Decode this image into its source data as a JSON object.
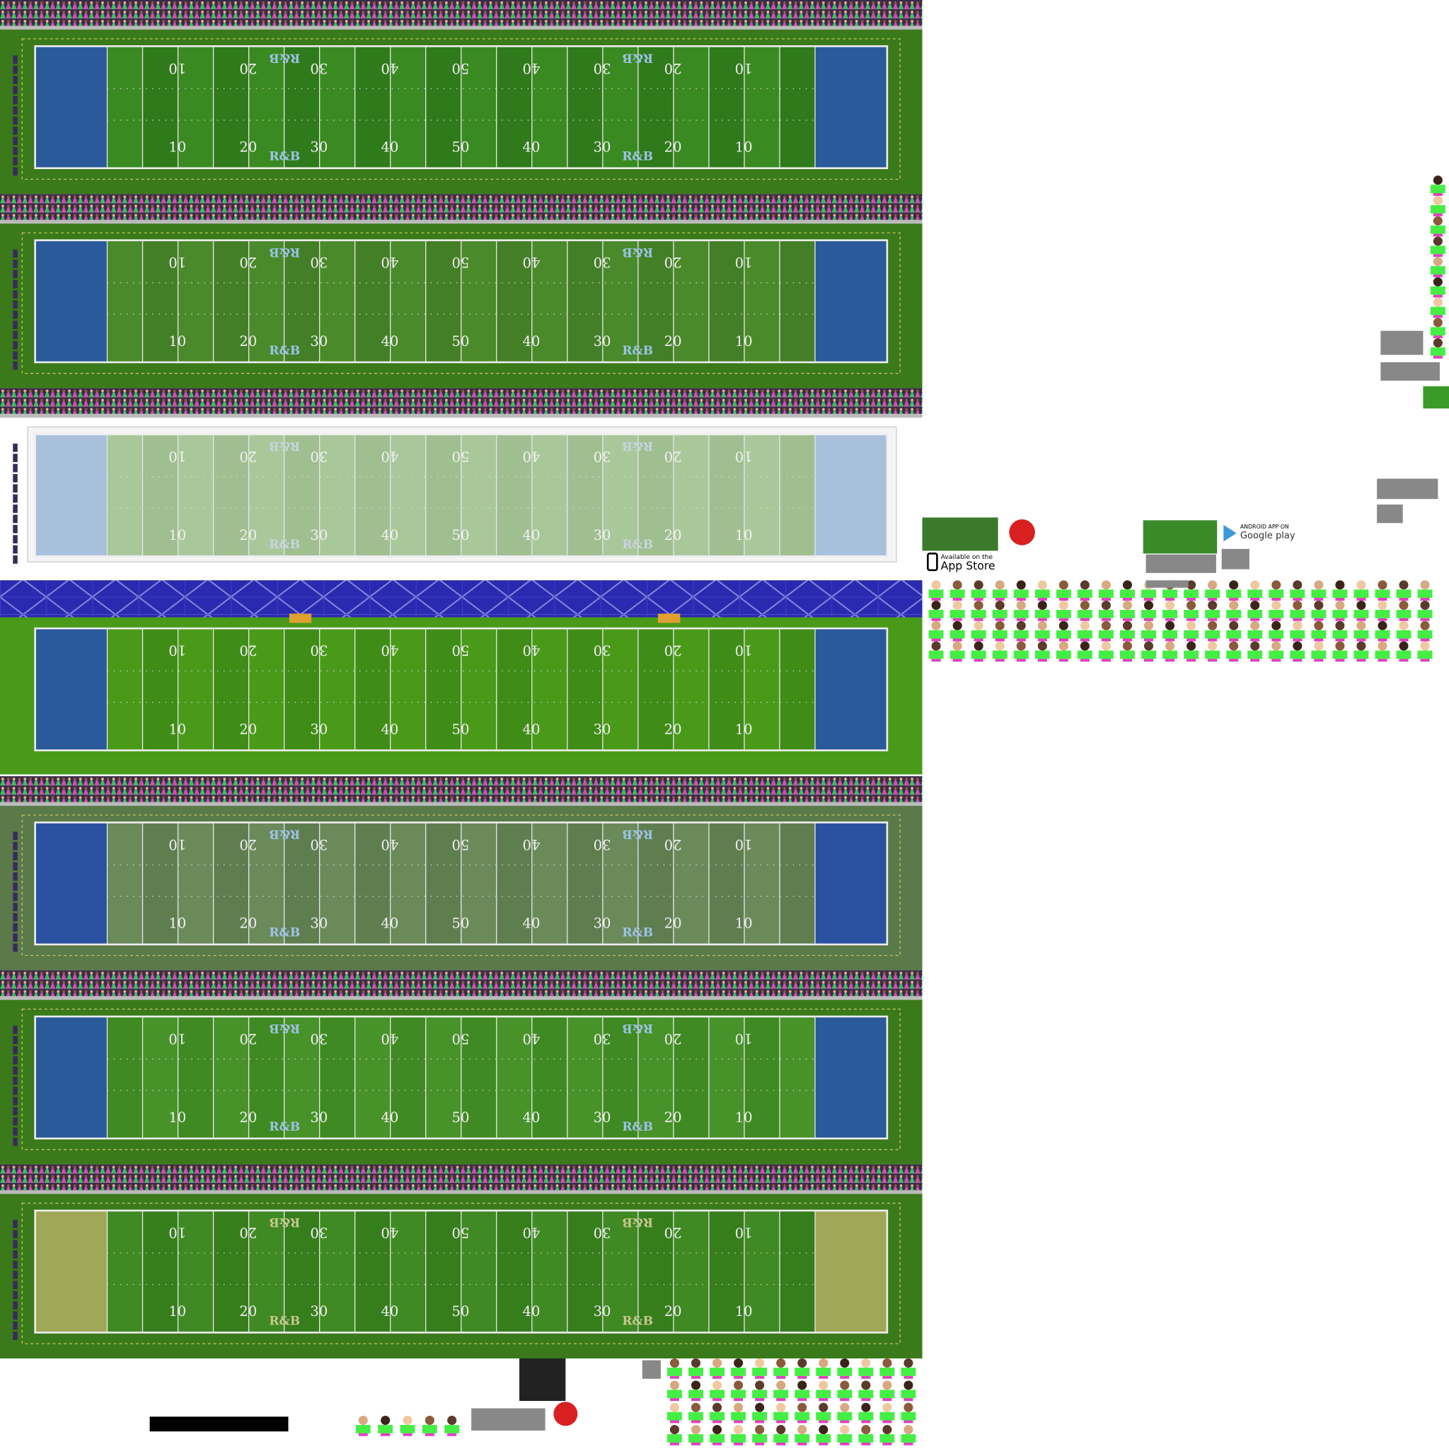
{
  "yard_labels": [
    "10",
    "20",
    "30",
    "40",
    "50",
    "40",
    "30",
    "20",
    "10"
  ],
  "logo": "R&B",
  "app_store": {
    "line1": "Available on the",
    "line2": "App Store"
  },
  "google_play": {
    "line1": "ANDROID APP ON",
    "line2": "Google play"
  }
}
